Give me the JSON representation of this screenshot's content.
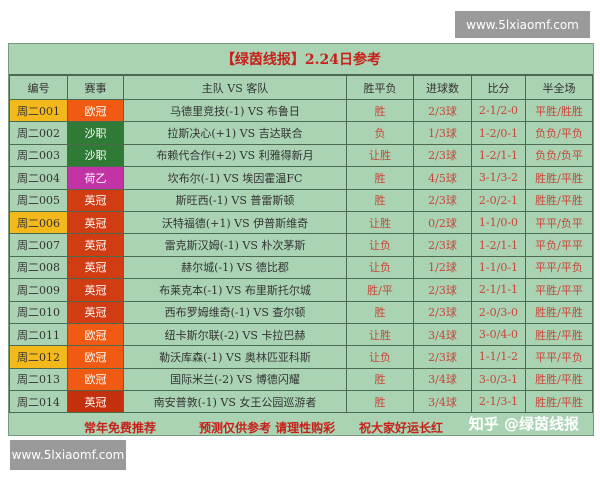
{
  "watermark_top": "www.5lxiaomf.com",
  "watermark_bottom": "www.5lxiaomf.com",
  "title": "【绿茵线报】2.24日参考",
  "headers": [
    "编号",
    "赛事",
    "主队 VS 客队",
    "胜平负",
    "进球数",
    "比分",
    "半全场"
  ],
  "league_colors": {
    "欧冠": "#f05a12",
    "沙职": "#2f7a35",
    "荷乙": "#c233a6",
    "英冠": "#d23c12"
  },
  "highlight_color": "#f3b81c",
  "rows": [
    {
      "id": "周二001",
      "league": "欧冠",
      "match": "马德里竞技(-1) VS 布鲁日",
      "result": "胜",
      "goals": "2/3球",
      "score": "2-1/2-0",
      "half_full": "平胜/胜胜",
      "highlight": true
    },
    {
      "id": "周二002",
      "league": "沙职",
      "match": "拉斯决心(+1) VS 吉达联合",
      "result": "负",
      "goals": "1/3球",
      "score": "1-2/0-1",
      "half_full": "负负/平负",
      "highlight": false
    },
    {
      "id": "周二003",
      "league": "沙职",
      "match": "布赖代合作(+2) VS 利雅得新月",
      "result": "让胜",
      "goals": "2/3球",
      "score": "1-2/1-1",
      "half_full": "负负/负平",
      "highlight": false
    },
    {
      "id": "周二004",
      "league": "荷乙",
      "match": "坎布尔(-1) VS 埃因霍温FC",
      "result": "胜",
      "goals": "4/5球",
      "score": "3-1/3-2",
      "half_full": "胜胜/平胜",
      "highlight": false
    },
    {
      "id": "周二005",
      "league": "英冠",
      "match": "斯旺西(-1) VS 普雷斯顿",
      "result": "胜",
      "goals": "2/3球",
      "score": "2-0/2-1",
      "half_full": "胜胜/平胜",
      "highlight": false
    },
    {
      "id": "周二006",
      "league": "英冠",
      "match": "沃特福德(+1) VS 伊普斯维奇",
      "result": "让胜",
      "goals": "0/2球",
      "score": "1-1/0-0",
      "half_full": "平平/负平",
      "highlight": true
    },
    {
      "id": "周二007",
      "league": "英冠",
      "match": "雷克斯汉姆(-1) VS 朴次茅斯",
      "result": "让负",
      "goals": "2/3球",
      "score": "1-2/1-1",
      "half_full": "平负/平平",
      "highlight": false
    },
    {
      "id": "周二008",
      "league": "英冠",
      "match": "赫尔城(-1) VS 德比郡",
      "result": "让负",
      "goals": "1/2球",
      "score": "1-1/0-1",
      "half_full": "平平/平负",
      "highlight": false
    },
    {
      "id": "周二009",
      "league": "英冠",
      "match": "布莱克本(-1) VS 布里斯托尔城",
      "result": "胜/平",
      "goals": "2/3球",
      "score": "2-1/1-1",
      "half_full": "平胜/平平",
      "highlight": false
    },
    {
      "id": "周二010",
      "league": "英冠",
      "match": "西布罗姆维奇(-1) VS 查尔顿",
      "result": "胜",
      "goals": "2/3球",
      "score": "2-0/3-0",
      "half_full": "胜胜/平胜",
      "highlight": false
    },
    {
      "id": "周二011",
      "league": "欧冠",
      "match": "纽卡斯尔联(-2) VS 卡拉巴赫",
      "result": "让胜",
      "goals": "3/4球",
      "score": "3-0/4-0",
      "half_full": "胜胜/平胜",
      "highlight": false
    },
    {
      "id": "周二012",
      "league": "欧冠",
      "match": "勒沃库森(-1) VS 奥林匹亚科斯",
      "result": "让负",
      "goals": "2/3球",
      "score": "1-1/1-2",
      "half_full": "平平/平负",
      "highlight": true
    },
    {
      "id": "周二013",
      "league": "欧冠",
      "match": "国际米兰(-2) VS 博德闪耀",
      "result": "胜",
      "goals": "3/4球",
      "score": "3-0/3-1",
      "half_full": "胜胜/平胜",
      "highlight": false
    },
    {
      "id": "周二014",
      "league": "英冠",
      "match": "南安普敦(-1) VS 女王公园巡游者",
      "result": "胜",
      "goals": "3/4球",
      "score": "2-1/3-1",
      "half_full": "胜胜/平胜",
      "highlight": false
    }
  ],
  "footer": [
    "常年免费推荐",
    "预测仅供参考  请理性购彩",
    "祝大家好运长红"
  ],
  "zhihu_watermark": "知乎 @绿茵线报"
}
